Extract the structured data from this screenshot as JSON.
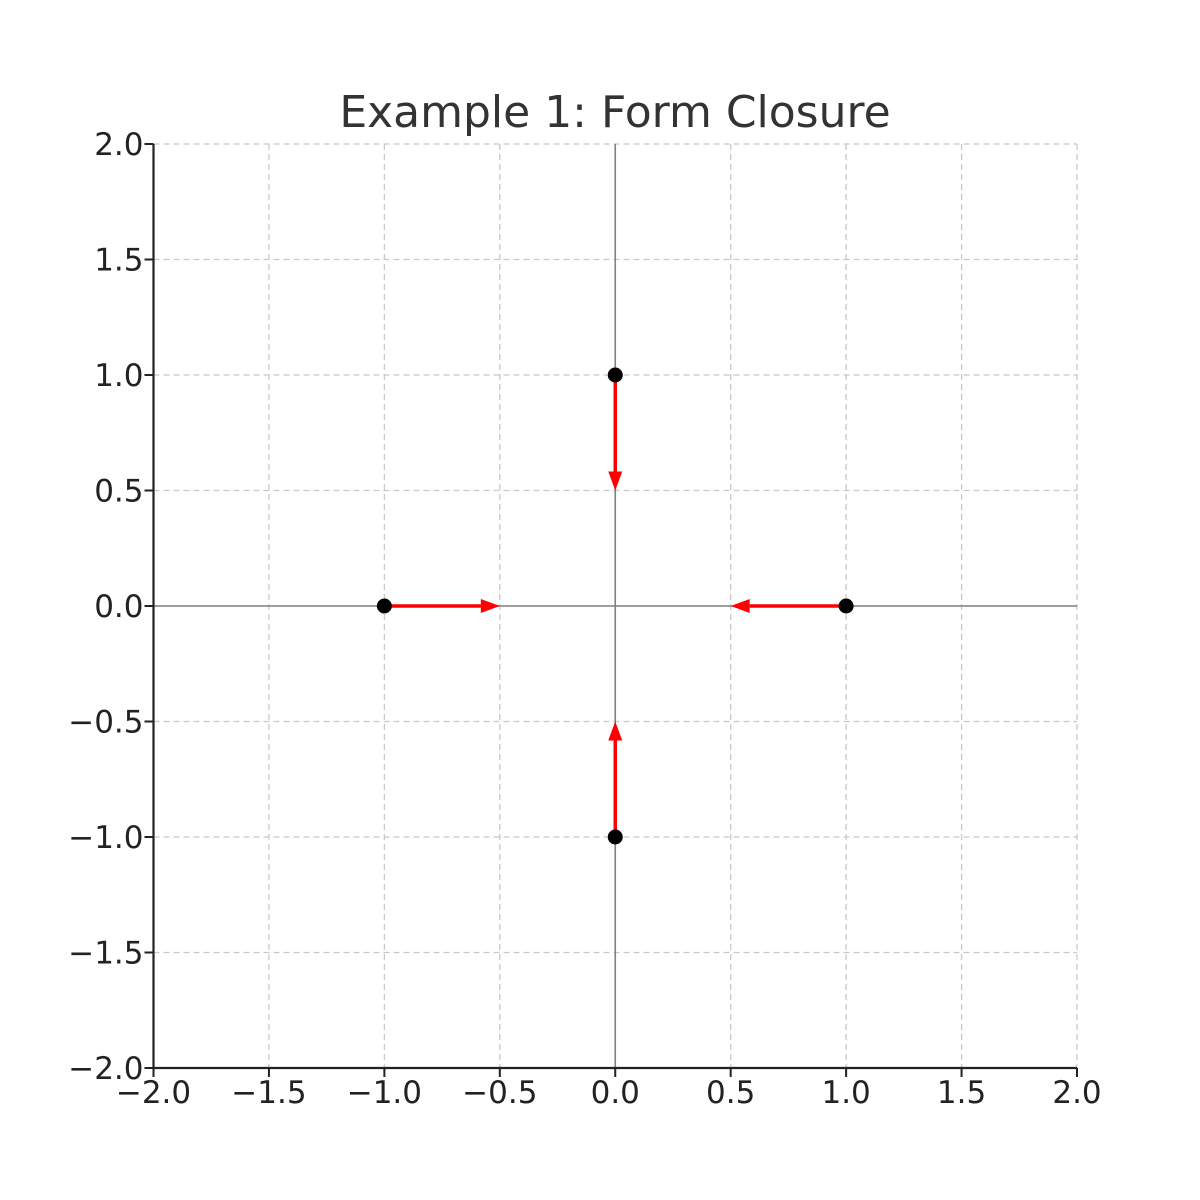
{
  "chart_data": {
    "type": "scatter",
    "title": "Example 1: Form Closure",
    "xlabel": "",
    "ylabel": "",
    "xlim": [
      -2.0,
      2.0
    ],
    "ylim": [
      -2.0,
      2.0
    ],
    "x_ticks": [
      -2.0,
      -1.5,
      -1.0,
      -0.5,
      0.0,
      0.5,
      1.0,
      1.5,
      2.0
    ],
    "y_ticks": [
      -2.0,
      -1.5,
      -1.0,
      -0.5,
      0.0,
      0.5,
      1.0,
      1.5,
      2.0
    ],
    "x_tick_labels": [
      "−2.0",
      "−1.5",
      "−1.0",
      "−0.5",
      "0.0",
      "0.5",
      "1.0",
      "1.5",
      "2.0"
    ],
    "y_tick_labels": [
      "−2.0",
      "−1.5",
      "−1.0",
      "−0.5",
      "0.0",
      "0.5",
      "1.0",
      "1.5",
      "2.0"
    ],
    "grid": true,
    "reference_lines": {
      "x0": true,
      "y0": true
    },
    "points": [
      {
        "x": -1.0,
        "y": 0.0
      },
      {
        "x": 1.0,
        "y": 0.0
      },
      {
        "x": 0.0,
        "y": 1.0
      },
      {
        "x": 0.0,
        "y": -1.0
      }
    ],
    "arrows": [
      {
        "x": -1.0,
        "y": 0.0,
        "dx": 0.5,
        "dy": 0.0
      },
      {
        "x": 1.0,
        "y": 0.0,
        "dx": -0.5,
        "dy": 0.0
      },
      {
        "x": 0.0,
        "y": 1.0,
        "dx": 0.0,
        "dy": -0.5
      },
      {
        "x": 0.0,
        "y": -1.0,
        "dx": 0.0,
        "dy": 0.5
      }
    ],
    "colors": {
      "points": "#000000",
      "arrows": "#ff0000"
    }
  }
}
